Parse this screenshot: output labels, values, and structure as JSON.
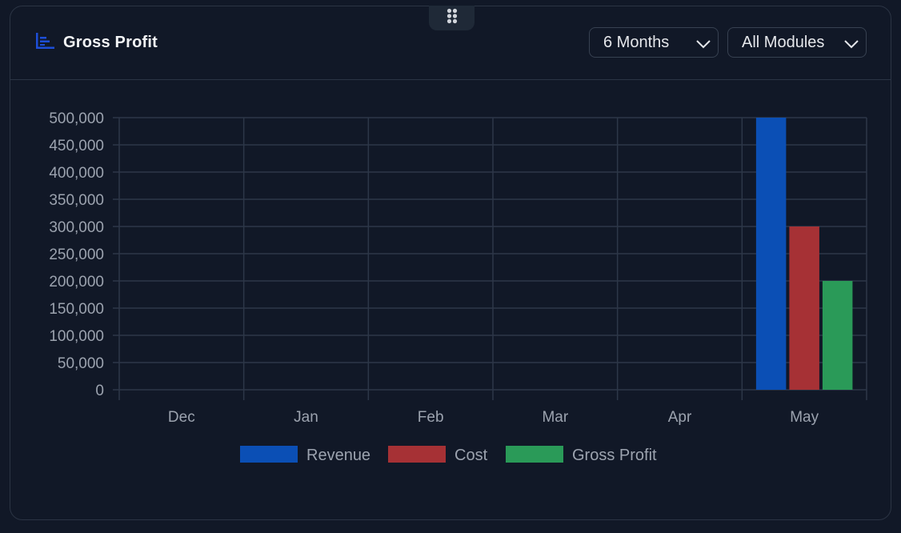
{
  "widget": {
    "title": "Gross Profit",
    "icon": "bar-chart-icon",
    "drag_icon": "drag-handle-icon"
  },
  "filters": {
    "period": {
      "selected": "6 Months"
    },
    "module": {
      "selected": "All Modules"
    }
  },
  "colors": {
    "background": "#111827",
    "grid": "#2d3748",
    "revenue": "#0b4fb5",
    "cost": "#a63135",
    "gross_profit": "#2a9a58",
    "accent_icon": "#1d4ed8"
  },
  "chart_data": {
    "type": "bar",
    "categories": [
      "Dec",
      "Jan",
      "Feb",
      "Mar",
      "Apr",
      "May"
    ],
    "series": [
      {
        "name": "Revenue",
        "values": [
          0,
          0,
          0,
          0,
          0,
          500000
        ]
      },
      {
        "name": "Cost",
        "values": [
          0,
          0,
          0,
          0,
          0,
          300000
        ]
      },
      {
        "name": "Gross Profit",
        "values": [
          0,
          0,
          0,
          0,
          0,
          200000
        ]
      }
    ],
    "yticks": [
      "0",
      "50,000",
      "100,000",
      "150,000",
      "200,000",
      "250,000",
      "300,000",
      "350,000",
      "400,000",
      "450,000",
      "500,000"
    ],
    "ylim": [
      0,
      500000
    ],
    "grid": true,
    "legend_position": "bottom"
  }
}
